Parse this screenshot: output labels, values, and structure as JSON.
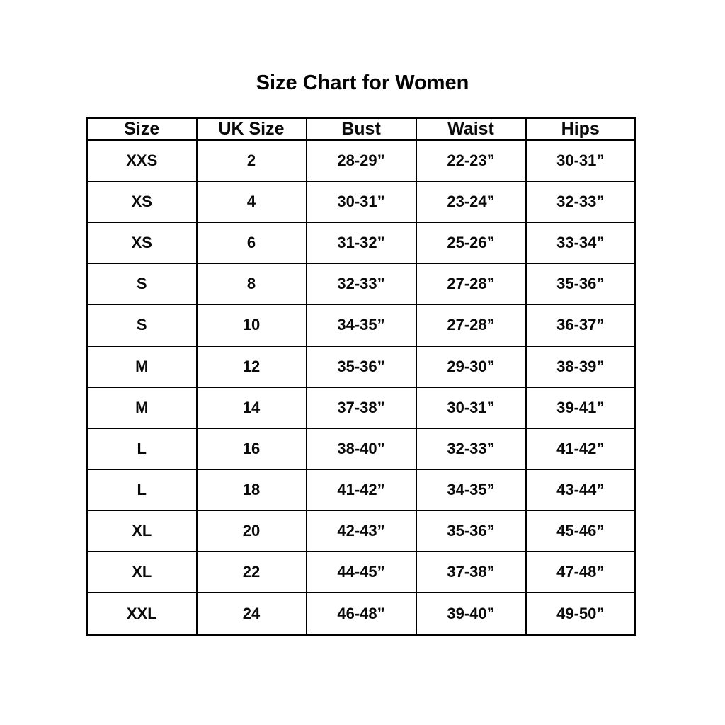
{
  "colors": {
    "background": "#ffffff",
    "text": "#0a0a0a",
    "border": "#000000"
  },
  "chart_data": {
    "type": "table",
    "title": "Size Chart for Women",
    "columns": [
      "Size",
      "UK Size",
      "Bust",
      "Waist",
      "Hips"
    ],
    "rows": [
      [
        "XXS",
        "2",
        "28-29”",
        "22-23”",
        "30-31”"
      ],
      [
        "XS",
        "4",
        "30-31”",
        "23-24”",
        "32-33”"
      ],
      [
        "XS",
        "6",
        "31-32”",
        "25-26”",
        "33-34”"
      ],
      [
        "S",
        "8",
        "32-33”",
        "27-28”",
        "35-36”"
      ],
      [
        "S",
        "10",
        "34-35”",
        "27-28”",
        "36-37”"
      ],
      [
        "M",
        "12",
        "35-36”",
        "29-30”",
        "38-39”"
      ],
      [
        "M",
        "14",
        "37-38”",
        "30-31”",
        "39-41”"
      ],
      [
        "L",
        "16",
        "38-40”",
        "32-33”",
        "41-42”"
      ],
      [
        "L",
        "18",
        "41-42”",
        "34-35”",
        "43-44”"
      ],
      [
        "XL",
        "20",
        "42-43”",
        "35-36”",
        "45-46”"
      ],
      [
        "XL",
        "22",
        "44-45”",
        "37-38”",
        "47-48”"
      ],
      [
        "XXL",
        "24",
        "46-48”",
        "39-40”",
        "49-50”"
      ]
    ]
  }
}
